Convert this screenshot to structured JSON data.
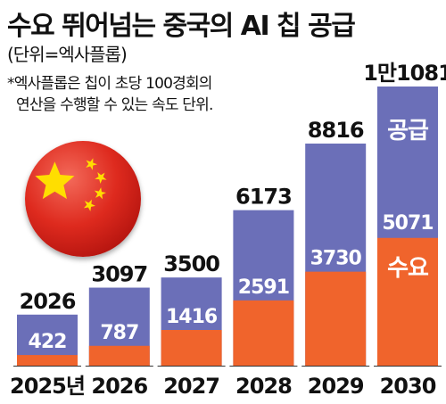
{
  "title": "수요 뛰어넘는 중국의 AI 칩 공급",
  "unit_note": "(단위=엑사플롭)",
  "footnote": {
    "line1": "*엑사플롭은 칩이 초당 100경회의",
    "line2": "연산을 수행할 수 있는 속도 단위."
  },
  "colors": {
    "supply": "#6b6fb8",
    "demand": "#f0642c",
    "flag_red": "#de2a1e",
    "flag_star": "#ffde00"
  },
  "flag_icon": "china-flag-icon",
  "chart_data": {
    "type": "bar",
    "categories": [
      "2025년",
      "2026",
      "2027",
      "2028",
      "2029",
      "2030"
    ],
    "series": [
      {
        "name": "공급",
        "values": [
          2026,
          3097,
          3500,
          6173,
          8816,
          11081
        ]
      },
      {
        "name": "수요",
        "values": [
          422,
          787,
          1416,
          2591,
          3730,
          5071
        ]
      }
    ],
    "supply_labels": [
      "2026",
      "3097",
      "3500",
      "6173",
      "8816",
      "1만1081"
    ],
    "demand_labels": [
      "422",
      "787",
      "1416",
      "2591",
      "3730",
      "5071"
    ],
    "ylim": [
      0,
      11081
    ],
    "grid": false
  }
}
